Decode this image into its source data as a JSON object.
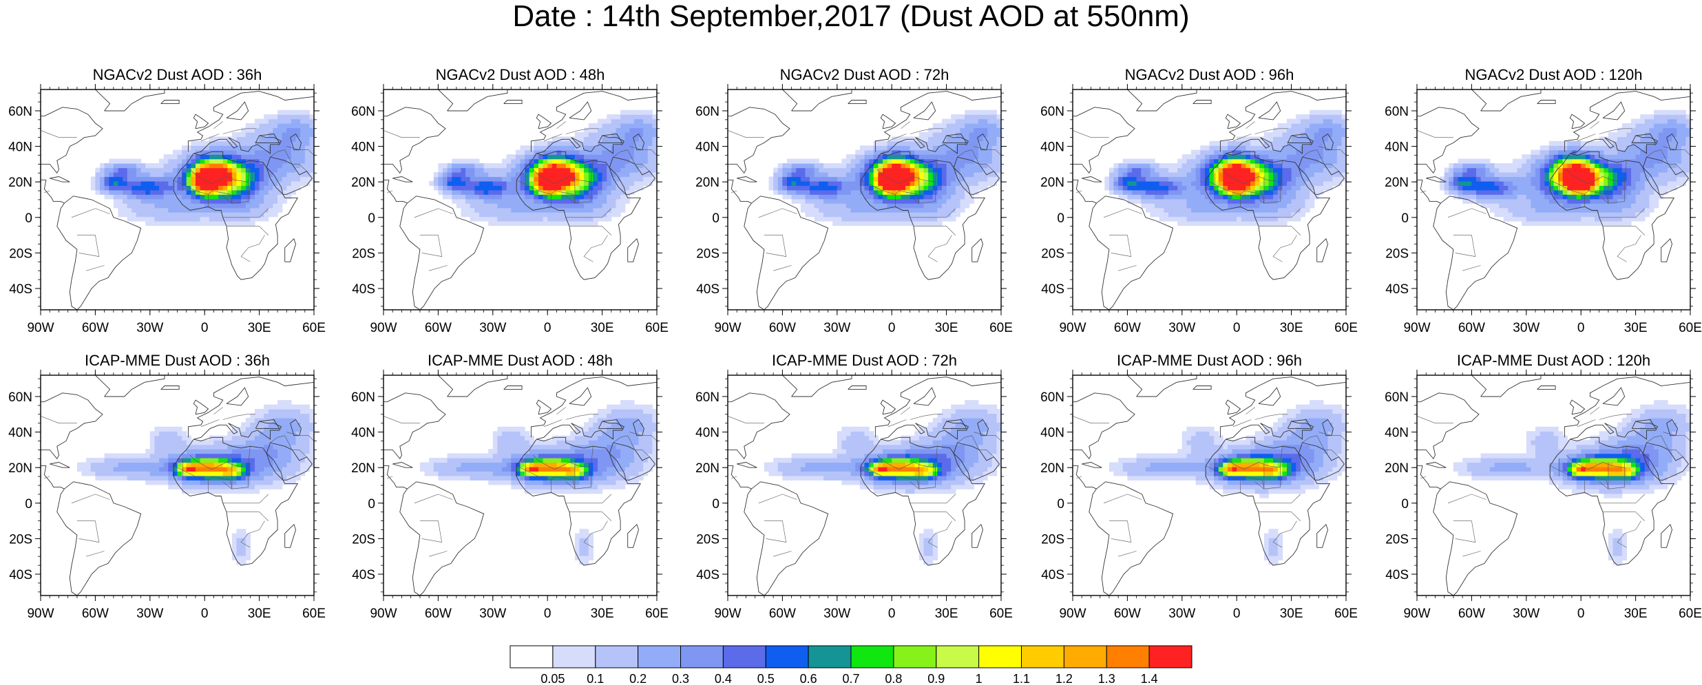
{
  "title": "Date : 14th September,2017 (Dust AOD at 550nm)",
  "lon_ticks": [
    "90W",
    "60W",
    "30W",
    "0",
    "30E",
    "60E"
  ],
  "lat_ticks": [
    "60N",
    "40N",
    "20N",
    "0",
    "20S",
    "40S"
  ],
  "rows": [
    {
      "model": "NGACv2",
      "panels": [
        {
          "label": "NGACv2 Dust AOD : 36h",
          "lead_hours": 36
        },
        {
          "label": "NGACv2 Dust AOD : 48h",
          "lead_hours": 48
        },
        {
          "label": "NGACv2 Dust AOD : 72h",
          "lead_hours": 72
        },
        {
          "label": "NGACv2 Dust AOD : 96h",
          "lead_hours": 96
        },
        {
          "label": "NGACv2 Dust AOD : 120h",
          "lead_hours": 120
        }
      ]
    },
    {
      "model": "ICAP-MME",
      "panels": [
        {
          "label": "ICAP-MME Dust AOD : 36h",
          "lead_hours": 36
        },
        {
          "label": "ICAP-MME Dust AOD : 48h",
          "lead_hours": 48
        },
        {
          "label": "ICAP-MME Dust AOD : 72h",
          "lead_hours": 72
        },
        {
          "label": "ICAP-MME Dust AOD : 96h",
          "lead_hours": 96
        },
        {
          "label": "ICAP-MME Dust AOD : 120h",
          "lead_hours": 120
        }
      ]
    }
  ],
  "colorbar": {
    "labels": [
      "0.05",
      "0.1",
      "0.2",
      "0.3",
      "0.4",
      "0.5",
      "0.6",
      "0.7",
      "0.8",
      "0.9",
      "1",
      "1.1",
      "1.2",
      "1.3",
      "1.4"
    ],
    "colors": [
      "#ffffff",
      "#d6dcfb",
      "#b5c3f9",
      "#92acf7",
      "#7f96f3",
      "#5b6bea",
      "#0f5ef0",
      "#149495",
      "#10e60f",
      "#86f21a",
      "#c8fa48",
      "#ffff00",
      "#ffcc00",
      "#ffab00",
      "#ff7f00",
      "#ff2222"
    ]
  }
}
